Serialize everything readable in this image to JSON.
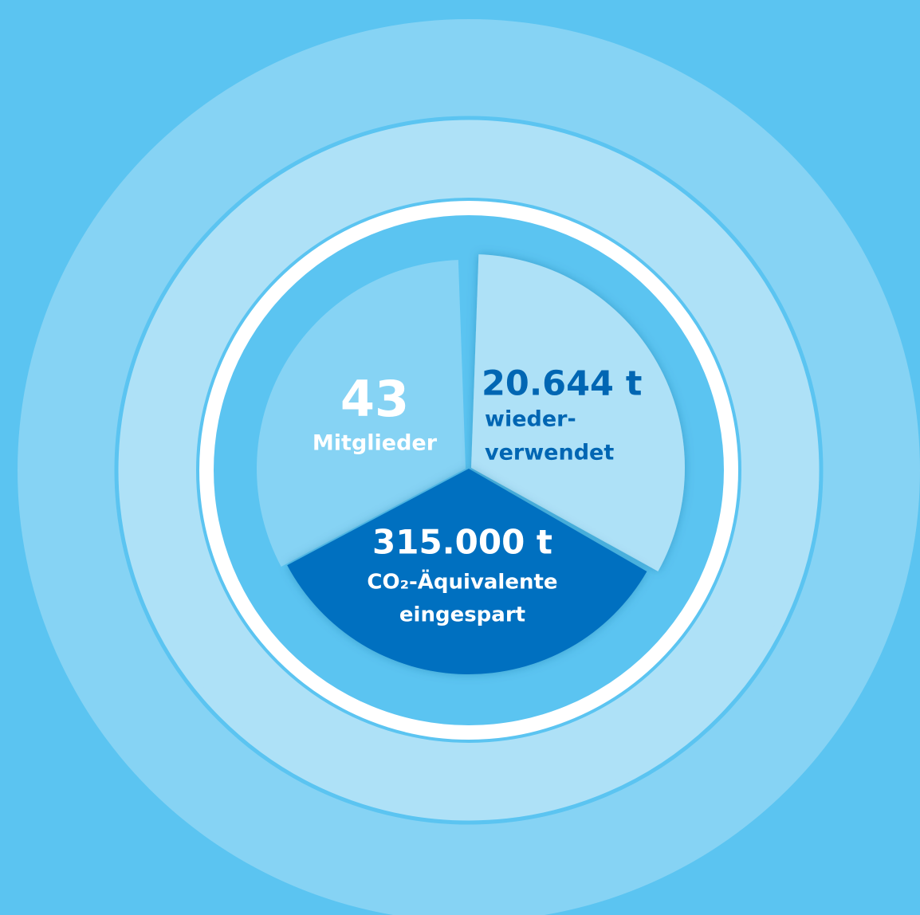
{
  "segments": [
    {
      "value": "43",
      "label": [
        "Mitglieder"
      ]
    },
    {
      "value": "20.644 t",
      "label": [
        "wieder-",
        "verwendet"
      ]
    },
    {
      "value": "315.000 t",
      "label": [
        "CO₂-Äquivalente",
        "eingespart"
      ]
    }
  ]
}
